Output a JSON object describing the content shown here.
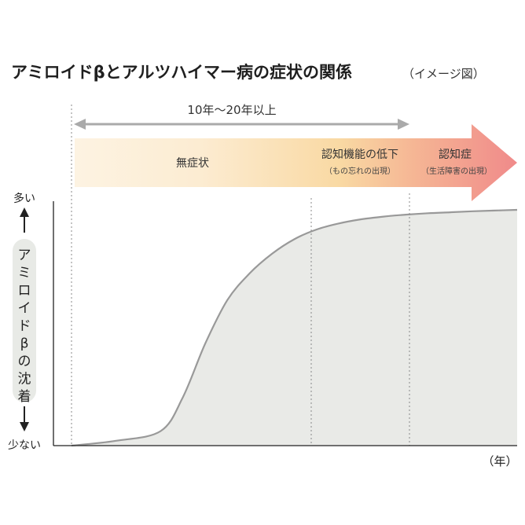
{
  "chart_data": {
    "type": "area",
    "title": "アミロイドβとアルツハイマー病の症状の関係",
    "subtitle": "（イメージ図）",
    "time_span_label": "10年〜20年以上",
    "stages": [
      {
        "label": "無症状",
        "sublabel": ""
      },
      {
        "label": "認知機能の低下",
        "sublabel": "（もの忘れの出現）"
      },
      {
        "label": "認知症",
        "sublabel": "（生活障害の出現）"
      }
    ],
    "ylabel": "アミロイドβの沈着",
    "ylabel_chars": [
      "ア",
      "ミ",
      "ロ",
      "イ",
      "ド",
      "β",
      "の",
      "沈",
      "着"
    ],
    "y_high_label": "多い",
    "y_low_label": "少ない",
    "x_unit_label": "（年）",
    "x": [
      0,
      10,
      20,
      25,
      30,
      35,
      40,
      45,
      50,
      55,
      60,
      65,
      70,
      75,
      80,
      85,
      90,
      95,
      100
    ],
    "values": [
      0,
      2,
      6,
      20,
      42,
      60,
      71,
      79,
      85,
      89,
      91.5,
      93.2,
      94.3,
      95.1,
      95.7,
      96.1,
      96.5,
      96.8,
      97.1
    ],
    "xlim": [
      0,
      100
    ],
    "ylim": [
      0,
      100
    ],
    "grid": false,
    "colors": {
      "curve": "#999999",
      "fill": "#e9eae7",
      "stage_band_start": "#fdf3e2",
      "stage_band_mid": "#f9d9a3",
      "stage_band_end": "#f08a8a",
      "span_arrow": "#aaaaaa",
      "axis": "#222222"
    }
  }
}
